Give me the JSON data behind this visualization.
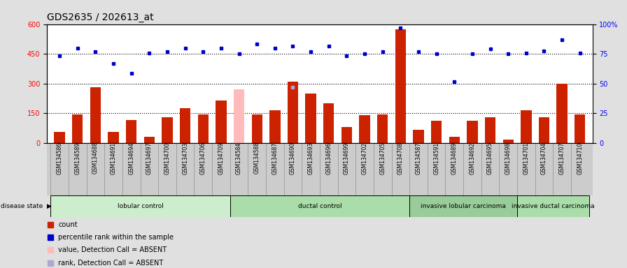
{
  "title": "GDS2635 / 202613_at",
  "samples": [
    "GSM134586",
    "GSM134589",
    "GSM134688",
    "GSM134691",
    "GSM134694",
    "GSM134697",
    "GSM134700",
    "GSM134703",
    "GSM134706",
    "GSM134709",
    "GSM134584",
    "GSM134588",
    "GSM134687",
    "GSM134690",
    "GSM134693",
    "GSM134696",
    "GSM134699",
    "GSM134702",
    "GSM134705",
    "GSM134708",
    "GSM134587",
    "GSM134591",
    "GSM134689",
    "GSM134692",
    "GSM134695",
    "GSM134698",
    "GSM134701",
    "GSM134704",
    "GSM134707",
    "GSM134710"
  ],
  "counts": [
    55,
    145,
    280,
    55,
    115,
    30,
    130,
    175,
    145,
    215,
    10,
    145,
    165,
    310,
    250,
    200,
    80,
    140,
    145,
    575,
    65,
    110,
    30,
    110,
    130,
    15,
    165,
    130,
    300,
    145
  ],
  "ranks": [
    440,
    480,
    460,
    400,
    350,
    455,
    460,
    480,
    460,
    480,
    450,
    500,
    480,
    490,
    460,
    490,
    440,
    450,
    460,
    580,
    460,
    450,
    310,
    450,
    475,
    450,
    455,
    465,
    520,
    455
  ],
  "absent_bar_idx": 10,
  "absent_bar_value": 270,
  "absent_dot_idx": 13,
  "absent_dot_value": 280,
  "groups": [
    {
      "label": "lobular control",
      "start": 0,
      "end": 9
    },
    {
      "label": "ductal control",
      "start": 10,
      "end": 19
    },
    {
      "label": "invasive lobular carcinoma",
      "start": 20,
      "end": 25
    },
    {
      "label": "invasive ductal carcinoma",
      "start": 26,
      "end": 29
    }
  ],
  "group_colors": [
    "#cceecc",
    "#aaddaa",
    "#99cc99",
    "#aaddaa"
  ],
  "bar_color": "#cc2200",
  "dot_color": "#0000cc",
  "absent_bar_color": "#ffbbbb",
  "absent_dot_color": "#aaaacc",
  "xtick_bg": "#cccccc",
  "fig_bg": "#e0e0e0",
  "plot_bg": "#ffffff",
  "yticks_left": [
    0,
    150,
    300,
    450,
    600
  ],
  "yticks_right": [
    0,
    25,
    50,
    75,
    100
  ],
  "dotted_lines": [
    150,
    300,
    450
  ],
  "legend_items": [
    {
      "color": "#cc2200",
      "label": "count"
    },
    {
      "color": "#0000cc",
      "label": "percentile rank within the sample"
    },
    {
      "color": "#ffbbbb",
      "label": "value, Detection Call = ABSENT"
    },
    {
      "color": "#aaaacc",
      "label": "rank, Detection Call = ABSENT"
    }
  ]
}
